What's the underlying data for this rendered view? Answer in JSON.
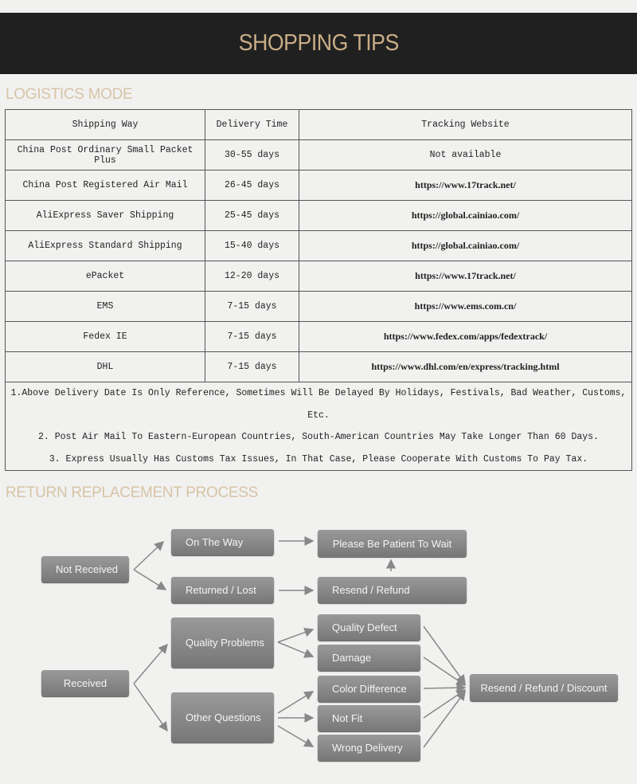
{
  "title": "SHOPPING TIPS",
  "logistics": {
    "heading": "LOGISTICS MODE",
    "columns": [
      "Shipping Way",
      "Delivery Time",
      "Tracking Website"
    ],
    "rows": [
      [
        "China Post Ordinary Small Packet Plus",
        "30-55 days",
        "Not available"
      ],
      [
        "China Post Registered Air Mail",
        "26-45 days",
        "https://www.17track.net/"
      ],
      [
        "AliExpress Saver Shipping",
        "25-45 days",
        "https://global.cainiao.com/"
      ],
      [
        "AliExpress Standard Shipping",
        "15-40 days",
        "https://global.cainiao.com/"
      ],
      [
        "ePacket",
        "12-20 days",
        "https://www.17track.net/"
      ],
      [
        "EMS",
        "7-15 days",
        "https://www.ems.com.cn/"
      ],
      [
        "Fedex IE",
        "7-15 days",
        "https://www.fedex.com/apps/fedextrack/"
      ],
      [
        "DHL",
        "7-15 days",
        "https://www.dhl.com/en/express/tracking.html"
      ]
    ],
    "notes": [
      "1.Above Delivery Date Is Only Reference, Sometimes Will Be Delayed By Holidays, Festivals, Bad Weather, Customs, Etc.",
      "2. Post Air Mail To Eastern-European Countries, South-American Countries May Take Longer Than 60 Days.",
      "3. Express Usually Has Customs Tax Issues, In That Case, Please Cooperate With Customs To Pay Tax."
    ]
  },
  "process": {
    "heading": "RETURN REPLACEMENT PROCESS",
    "not_received": "Not Received",
    "received": "Received",
    "on_the_way": "On The Way",
    "returned_lost": "Returned / Lost",
    "quality_problems": "Quality Problems",
    "other_questions": "Other Questions",
    "be_patient": "Please Be Patient To Wait",
    "resend_refund": "Resend / Refund",
    "quality_defect": "Quality Defect",
    "damage": "Damage",
    "color_difference": "Color Difference",
    "not_fit": "Not Fit",
    "wrong_delivery": "Wrong Delivery",
    "resend_refund_discount": "Resend / Refund / Discount"
  }
}
